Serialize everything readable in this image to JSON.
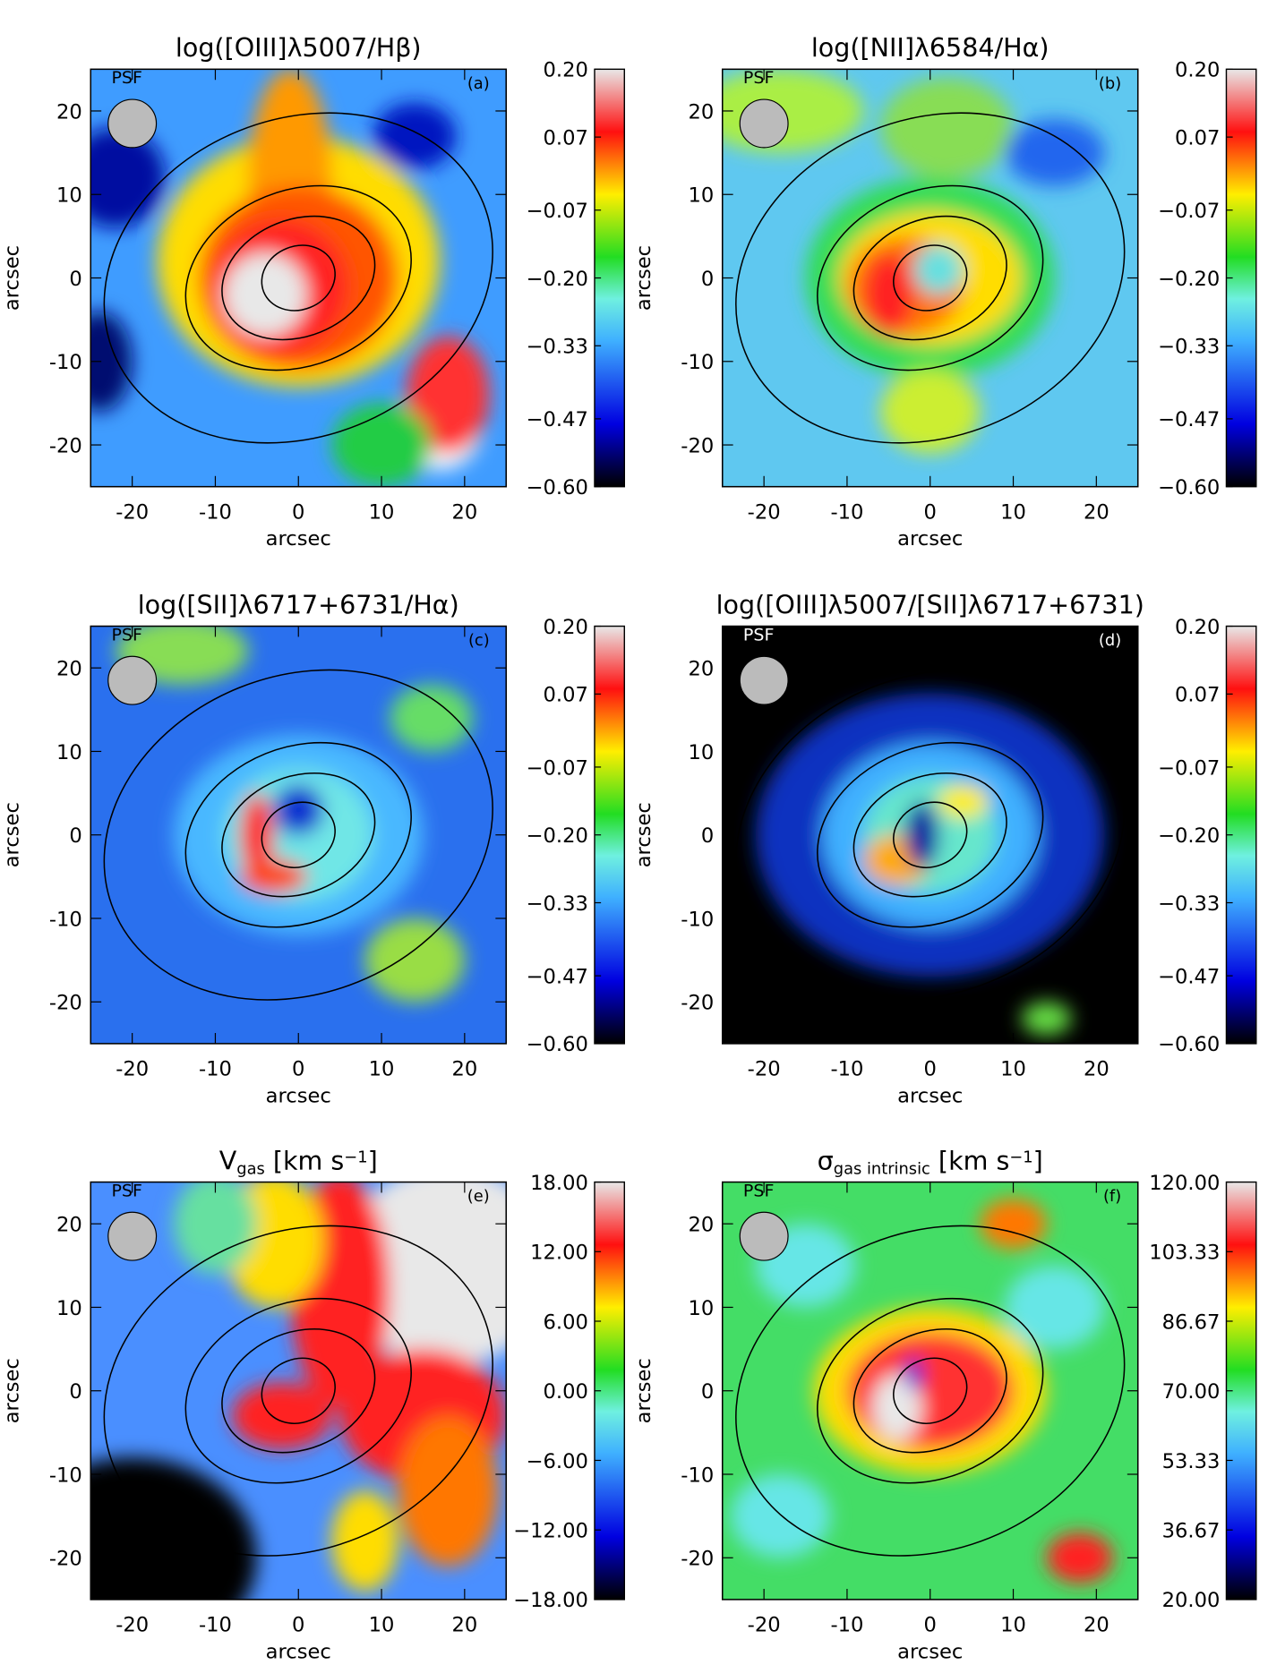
{
  "chart_data": [
    {
      "type": "map",
      "title": [
        {
          "text": "log([OIII]λ5007/Hβ)"
        }
      ],
      "panel_label": "(a)",
      "annotation": "PSF",
      "xlabel": "arcsec",
      "ylabel": "arcsec",
      "xlim": [
        -25,
        25
      ],
      "ylim": [
        -25,
        25
      ],
      "xticks": [
        -20,
        -10,
        0,
        10,
        20
      ],
      "yticks": [
        -20,
        -10,
        0,
        10,
        20
      ],
      "clim": [
        -0.6,
        0.2
      ],
      "cticks": [
        {
          "value": 0.2,
          "label": "0.20"
        },
        {
          "value": 0.07,
          "label": "0.07"
        },
        {
          "value": -0.07,
          "label": "−0.07"
        },
        {
          "value": -0.2,
          "label": "−0.20"
        },
        {
          "value": -0.33,
          "label": "−0.33"
        },
        {
          "value": -0.47,
          "label": "−0.47"
        },
        {
          "value": -0.6,
          "label": "−0.60"
        }
      ]
    },
    {
      "type": "map",
      "title": [
        {
          "text": "log([NII]λ6584/Hα)"
        }
      ],
      "panel_label": "(b)",
      "annotation": "PSF",
      "xlabel": "arcsec",
      "ylabel": "arcsec",
      "xlim": [
        -25,
        25
      ],
      "ylim": [
        -25,
        25
      ],
      "xticks": [
        -20,
        -10,
        0,
        10,
        20
      ],
      "yticks": [
        -20,
        -10,
        0,
        10,
        20
      ],
      "clim": [
        -0.6,
        0.2
      ],
      "cticks": [
        {
          "value": 0.2,
          "label": "0.20"
        },
        {
          "value": 0.07,
          "label": "0.07"
        },
        {
          "value": -0.07,
          "label": "−0.07"
        },
        {
          "value": -0.2,
          "label": "−0.20"
        },
        {
          "value": -0.33,
          "label": "−0.33"
        },
        {
          "value": -0.47,
          "label": "−0.47"
        },
        {
          "value": -0.6,
          "label": "−0.60"
        }
      ]
    },
    {
      "type": "map",
      "title": [
        {
          "text": "log([SII]λ6717+6731/Hα)"
        }
      ],
      "panel_label": "(c)",
      "annotation": "PSF",
      "xlabel": "arcsec",
      "ylabel": "arcsec",
      "xlim": [
        -25,
        25
      ],
      "ylim": [
        -25,
        25
      ],
      "xticks": [
        -20,
        -10,
        0,
        10,
        20
      ],
      "yticks": [
        -20,
        -10,
        0,
        10,
        20
      ],
      "clim": [
        -0.6,
        0.2
      ],
      "cticks": [
        {
          "value": 0.2,
          "label": "0.20"
        },
        {
          "value": 0.07,
          "label": "0.07"
        },
        {
          "value": -0.07,
          "label": "−0.07"
        },
        {
          "value": -0.2,
          "label": "−0.20"
        },
        {
          "value": -0.33,
          "label": "−0.33"
        },
        {
          "value": -0.47,
          "label": "−0.47"
        },
        {
          "value": -0.6,
          "label": "−0.60"
        }
      ]
    },
    {
      "type": "map",
      "title": [
        {
          "text": "log([OIII]λ5007/[SII]λ6717+6731)"
        }
      ],
      "panel_label": "(d)",
      "annotation": "PSF",
      "xlabel": "arcsec",
      "ylabel": "arcsec",
      "xlim": [
        -25,
        25
      ],
      "ylim": [
        -25,
        25
      ],
      "xticks": [
        -20,
        -10,
        0,
        10,
        20
      ],
      "yticks": [
        -20,
        -10,
        0,
        10,
        20
      ],
      "clim": [
        -0.6,
        0.2
      ],
      "cticks": [
        {
          "value": 0.2,
          "label": "0.20"
        },
        {
          "value": 0.07,
          "label": "0.07"
        },
        {
          "value": -0.07,
          "label": "−0.07"
        },
        {
          "value": -0.2,
          "label": "−0.20"
        },
        {
          "value": -0.33,
          "label": "−0.33"
        },
        {
          "value": -0.47,
          "label": "−0.47"
        },
        {
          "value": -0.6,
          "label": "−0.60"
        }
      ]
    },
    {
      "type": "map",
      "title": [
        {
          "text": "V"
        },
        {
          "text": "gas",
          "sub": true
        },
        {
          "text": " [km s"
        },
        {
          "text": "−1",
          "sup": true
        },
        {
          "text": "]"
        }
      ],
      "panel_label": "(e)",
      "annotation": "PSF",
      "xlabel": "arcsec",
      "ylabel": "arcsec",
      "xlim": [
        -25,
        25
      ],
      "ylim": [
        -25,
        25
      ],
      "xticks": [
        -20,
        -10,
        0,
        10,
        20
      ],
      "yticks": [
        -20,
        -10,
        0,
        10,
        20
      ],
      "clim": [
        -18,
        18
      ],
      "cticks": [
        {
          "value": 18,
          "label": "18.00"
        },
        {
          "value": 12,
          "label": "12.00"
        },
        {
          "value": 6,
          "label": "6.00"
        },
        {
          "value": 0,
          "label": "0.00"
        },
        {
          "value": -6,
          "label": "−6.00"
        },
        {
          "value": -12,
          "label": "−12.00"
        },
        {
          "value": -18,
          "label": "−18.00"
        }
      ]
    },
    {
      "type": "map",
      "title": [
        {
          "text": "σ"
        },
        {
          "text": "gas intrinsic",
          "sub": true
        },
        {
          "text": " [km s"
        },
        {
          "text": "−1",
          "sup": true
        },
        {
          "text": "]"
        }
      ],
      "panel_label": "(f)",
      "annotation": "PSF",
      "xlabel": "arcsec",
      "ylabel": "arcsec",
      "xlim": [
        -25,
        25
      ],
      "ylim": [
        -25,
        25
      ],
      "xticks": [
        -20,
        -10,
        0,
        10,
        20
      ],
      "yticks": [
        -20,
        -10,
        0,
        10,
        20
      ],
      "clim": [
        20,
        120
      ],
      "cticks": [
        {
          "value": 120,
          "label": "120.00"
        },
        {
          "value": 103.33,
          "label": "103.33"
        },
        {
          "value": 86.67,
          "label": "86.67"
        },
        {
          "value": 70,
          "label": "70.00"
        },
        {
          "value": 53.33,
          "label": "53.33"
        },
        {
          "value": 36.67,
          "label": "36.67"
        },
        {
          "value": 20,
          "label": "20.00"
        }
      ]
    }
  ]
}
